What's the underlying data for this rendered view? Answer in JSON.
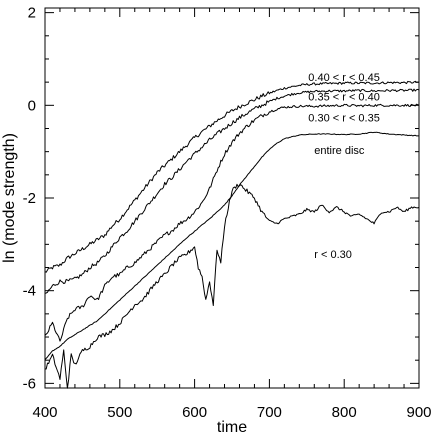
{
  "chart_data": {
    "type": "line",
    "xlabel": "time",
    "ylabel": "ln (mode strength)",
    "xlim": [
      400,
      900
    ],
    "ylim": [
      -6.1,
      2.1
    ],
    "xticks": [
      400,
      500,
      600,
      700,
      800,
      900
    ],
    "yticks": [
      -6,
      -4,
      -2,
      0,
      2
    ],
    "grid": false,
    "series": [
      {
        "name": "0.40 < r < 0.45",
        "x": [
          400,
          410,
          420,
          430,
          440,
          450,
          460,
          470,
          480,
          490,
          500,
          510,
          520,
          530,
          540,
          550,
          560,
          570,
          580,
          590,
          600,
          610,
          620,
          630,
          640,
          650,
          660,
          670,
          680,
          690,
          700,
          710,
          720,
          730,
          740,
          750,
          760,
          780,
          800,
          820,
          840,
          860,
          880,
          900
        ],
        "y": [
          -3.6,
          -3.5,
          -3.45,
          -3.3,
          -3.2,
          -3.1,
          -3.0,
          -2.9,
          -2.8,
          -2.6,
          -2.45,
          -2.25,
          -2.05,
          -1.85,
          -1.65,
          -1.45,
          -1.3,
          -1.15,
          -1.0,
          -0.85,
          -0.7,
          -0.57,
          -0.45,
          -0.33,
          -0.22,
          -0.12,
          -0.03,
          0.05,
          0.12,
          0.2,
          0.26,
          0.32,
          0.37,
          0.4,
          0.43,
          0.45,
          0.46,
          0.47,
          0.48,
          0.48,
          0.48,
          0.49,
          0.49,
          0.5
        ]
      },
      {
        "name": "0.35 < r < 0.40",
        "x": [
          400,
          410,
          420,
          430,
          440,
          450,
          460,
          470,
          480,
          490,
          500,
          510,
          520,
          530,
          540,
          550,
          560,
          570,
          580,
          590,
          600,
          610,
          620,
          630,
          640,
          650,
          660,
          670,
          680,
          690,
          700,
          710,
          720,
          730,
          740,
          760,
          780,
          800,
          820,
          840,
          860,
          880,
          900
        ],
        "y": [
          -4.1,
          -3.9,
          -3.8,
          -3.8,
          -3.75,
          -3.65,
          -3.5,
          -3.4,
          -3.25,
          -3.05,
          -2.85,
          -2.7,
          -2.5,
          -2.3,
          -2.1,
          -1.9,
          -1.7,
          -1.55,
          -1.38,
          -1.2,
          -1.05,
          -0.9,
          -0.75,
          -0.62,
          -0.5,
          -0.38,
          -0.27,
          -0.17,
          -0.08,
          0.0,
          0.08,
          0.15,
          0.2,
          0.24,
          0.27,
          0.3,
          0.31,
          0.31,
          0.32,
          0.31,
          0.32,
          0.32,
          0.33
        ]
      },
      {
        "name": "0.30 < r < 0.35",
        "x": [
          400,
          410,
          420,
          430,
          440,
          450,
          460,
          470,
          480,
          490,
          500,
          510,
          520,
          530,
          540,
          550,
          560,
          570,
          580,
          590,
          600,
          610,
          620,
          630,
          640,
          650,
          660,
          670,
          680,
          690,
          700,
          710,
          720,
          740,
          760,
          780,
          800,
          820,
          840,
          860,
          880,
          900
        ],
        "y": [
          -5.0,
          -4.7,
          -5.1,
          -4.6,
          -4.4,
          -4.35,
          -4.1,
          -4.2,
          -3.9,
          -3.7,
          -3.65,
          -3.5,
          -3.4,
          -3.25,
          -3.1,
          -2.95,
          -2.8,
          -2.7,
          -2.55,
          -2.45,
          -2.3,
          -2.1,
          -1.8,
          -1.4,
          -1.05,
          -0.8,
          -0.6,
          -0.45,
          -0.32,
          -0.22,
          -0.14,
          -0.08,
          -0.04,
          -0.02,
          -0.02,
          -0.01,
          0.0,
          -0.01,
          0.0,
          0.0,
          0.0,
          0.0
        ]
      },
      {
        "name": "entire disc",
        "x": [
          400,
          410,
          420,
          430,
          440,
          450,
          460,
          470,
          480,
          490,
          500,
          510,
          520,
          530,
          540,
          550,
          560,
          570,
          580,
          590,
          600,
          610,
          620,
          630,
          640,
          650,
          660,
          670,
          680,
          690,
          700,
          710,
          720,
          740,
          760,
          780,
          800,
          820,
          840,
          860,
          880,
          900
        ],
        "y": [
          -5.5,
          -5.3,
          -5.2,
          -5.05,
          -4.95,
          -4.85,
          -4.75,
          -4.65,
          -4.5,
          -4.35,
          -4.2,
          -4.05,
          -3.9,
          -3.75,
          -3.6,
          -3.45,
          -3.3,
          -3.15,
          -3.0,
          -2.85,
          -2.72,
          -2.58,
          -2.45,
          -2.3,
          -2.15,
          -1.95,
          -1.72,
          -1.52,
          -1.32,
          -1.12,
          -0.95,
          -0.82,
          -0.72,
          -0.64,
          -0.62,
          -0.62,
          -0.63,
          -0.62,
          -0.58,
          -0.62,
          -0.64,
          -0.66
        ]
      },
      {
        "name": "r < 0.30",
        "x": [
          400,
          410,
          420,
          425,
          430,
          435,
          440,
          450,
          460,
          470,
          480,
          490,
          500,
          510,
          520,
          530,
          540,
          550,
          560,
          570,
          580,
          590,
          600,
          605,
          610,
          615,
          620,
          625,
          630,
          635,
          640,
          645,
          650,
          655,
          660,
          670,
          680,
          690,
          700,
          710,
          720,
          730,
          740,
          750,
          760,
          770,
          780,
          790,
          800,
          810,
          820,
          830,
          840,
          850,
          860,
          870,
          880,
          890,
          900
        ],
        "y": [
          -5.7,
          -5.4,
          -5.9,
          -5.3,
          -6.1,
          -5.4,
          -5.6,
          -5.3,
          -5.2,
          -5.0,
          -4.95,
          -4.85,
          -4.7,
          -4.5,
          -4.3,
          -4.2,
          -4.0,
          -3.8,
          -3.65,
          -3.45,
          -3.3,
          -3.2,
          -3.05,
          -3.5,
          -3.7,
          -4.2,
          -3.8,
          -4.3,
          -3.1,
          -3.4,
          -2.6,
          -2.2,
          -1.85,
          -1.75,
          -1.7,
          -1.85,
          -2.0,
          -2.3,
          -2.5,
          -2.55,
          -2.45,
          -2.4,
          -2.35,
          -2.25,
          -2.3,
          -2.15,
          -2.3,
          -2.2,
          -2.3,
          -2.4,
          -2.35,
          -2.45,
          -2.55,
          -2.3,
          -2.3,
          -2.2,
          -2.3,
          -2.2,
          -2.2
        ]
      }
    ],
    "annotations": [
      {
        "text": "0.40 < r < 0.45",
        "x": 752,
        "y": 0.52
      },
      {
        "text": "0.35 < r < 0.40",
        "x": 752,
        "y": 0.1
      },
      {
        "text": "0.30 < r < 0.35",
        "x": 752,
        "y": -0.35
      },
      {
        "text": "entire disc",
        "x": 760,
        "y": -1.05
      },
      {
        "text": "r < 0.30",
        "x": 760,
        "y": -3.3
      }
    ]
  }
}
